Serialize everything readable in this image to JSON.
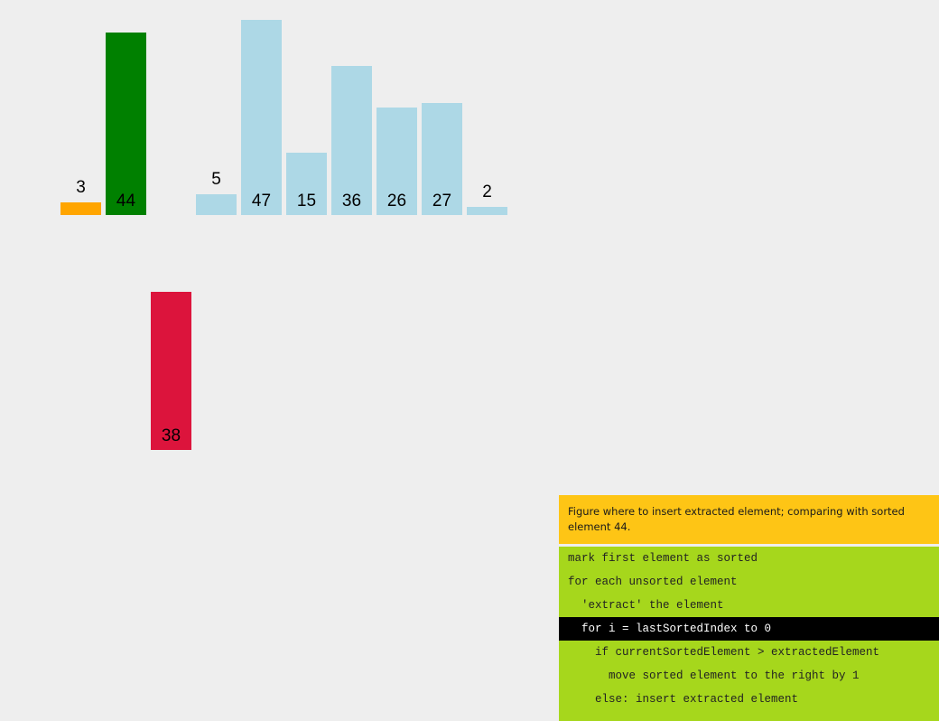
{
  "array": {
    "colors": {
      "unsorted": "#add8e6",
      "sorted": "#ffa500",
      "comparing": "#008000",
      "extracted": "#dc143c"
    },
    "max_value": 47,
    "bars": [
      {
        "value": 3,
        "state": "sorted",
        "row": "main",
        "slot": 0
      },
      {
        "value": 44,
        "state": "comparing",
        "row": "main",
        "slot": 1
      },
      {
        "value": 5,
        "state": "unsorted",
        "row": "main",
        "slot": 3
      },
      {
        "value": 47,
        "state": "unsorted",
        "row": "main",
        "slot": 4
      },
      {
        "value": 15,
        "state": "unsorted",
        "row": "main",
        "slot": 5
      },
      {
        "value": 36,
        "state": "unsorted",
        "row": "main",
        "slot": 6
      },
      {
        "value": 26,
        "state": "unsorted",
        "row": "main",
        "slot": 7
      },
      {
        "value": 27,
        "state": "unsorted",
        "row": "main",
        "slot": 8
      },
      {
        "value": 2,
        "state": "unsorted",
        "row": "main",
        "slot": 9
      },
      {
        "value": 38,
        "state": "extracted",
        "row": "extracted",
        "slot": 2
      }
    ]
  },
  "status": {
    "text": "Figure where to insert extracted element; comparing with sorted element 44."
  },
  "code": {
    "active_index": 3,
    "lines": [
      "mark first element as sorted",
      "for each unsorted element",
      "  'extract' the element",
      "  for i = lastSortedIndex to 0",
      "    if currentSortedElement > extractedElement",
      "      move sorted element to the right by 1",
      "    else: insert extracted element"
    ]
  }
}
